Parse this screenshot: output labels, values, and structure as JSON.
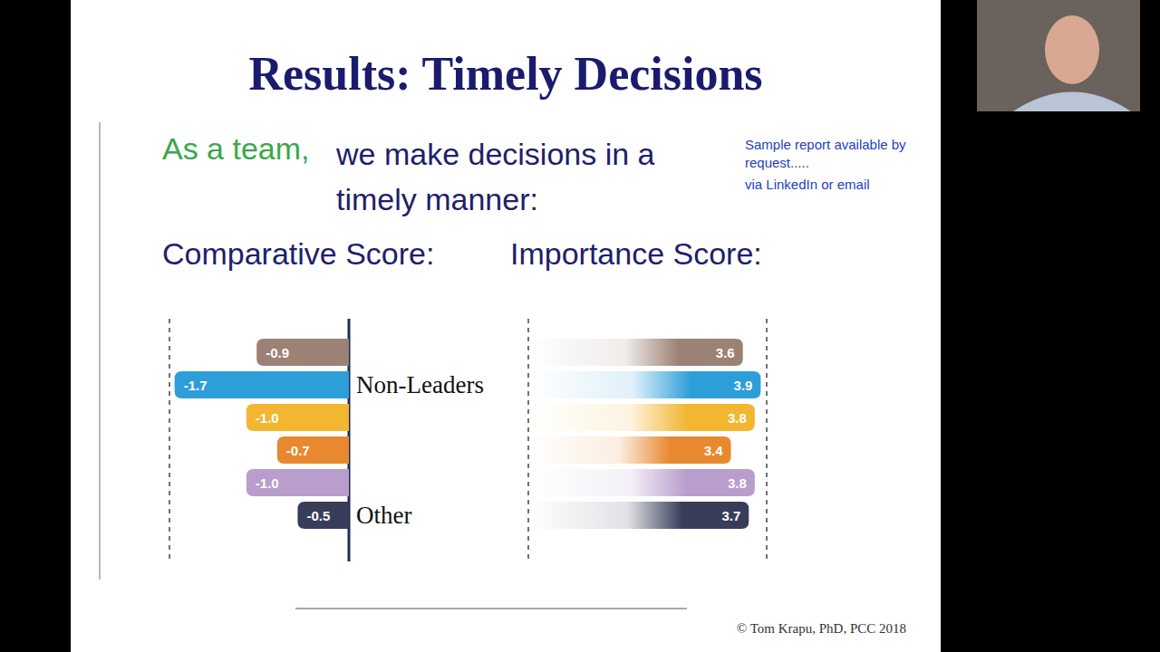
{
  "slide": {
    "title": "Results: Timely Decisions",
    "note": [
      "Sample report available by request.....",
      "via LinkedIn or email"
    ],
    "prompt_lead": "As a team,",
    "prompt": "we make decisions in a timely manner:",
    "copyright": "© Tom Krapu, PhD, PCC 2018"
  },
  "chart_data": [
    {
      "type": "bar",
      "title": "Comparative Score:",
      "orientation": "horizontal",
      "categories": [
        null,
        "Non-Leaders",
        null,
        null,
        null,
        "Other"
      ],
      "values": [
        -0.9,
        -1.7,
        -1.0,
        -0.7,
        -1.0,
        -0.5
      ],
      "value_labels": [
        "-0.9",
        "-1.7",
        "-1.0",
        "-0.7",
        "-1.0",
        "-0.5"
      ],
      "colors": [
        "#9c8275",
        "#2e9ed8",
        "#f2b631",
        "#e8892f",
        "#b99dcd",
        "#383d5a"
      ],
      "xlim": [
        -1.75,
        0
      ],
      "data_labels": true,
      "tick_labels": "y",
      "grid": false
    },
    {
      "type": "bar",
      "title": "Importance Score:",
      "orientation": "horizontal",
      "categories": [
        null,
        null,
        null,
        null,
        null,
        null
      ],
      "values": [
        3.6,
        3.9,
        3.8,
        3.4,
        3.8,
        3.7
      ],
      "colors": [
        "#9c8275",
        "#2e9ed8",
        "#f2b631",
        "#e8892f",
        "#b99dcd",
        "#383d5a"
      ],
      "xlim": [
        0,
        4
      ],
      "data_labels": true,
      "tick_labels": false,
      "grid": false
    }
  ]
}
